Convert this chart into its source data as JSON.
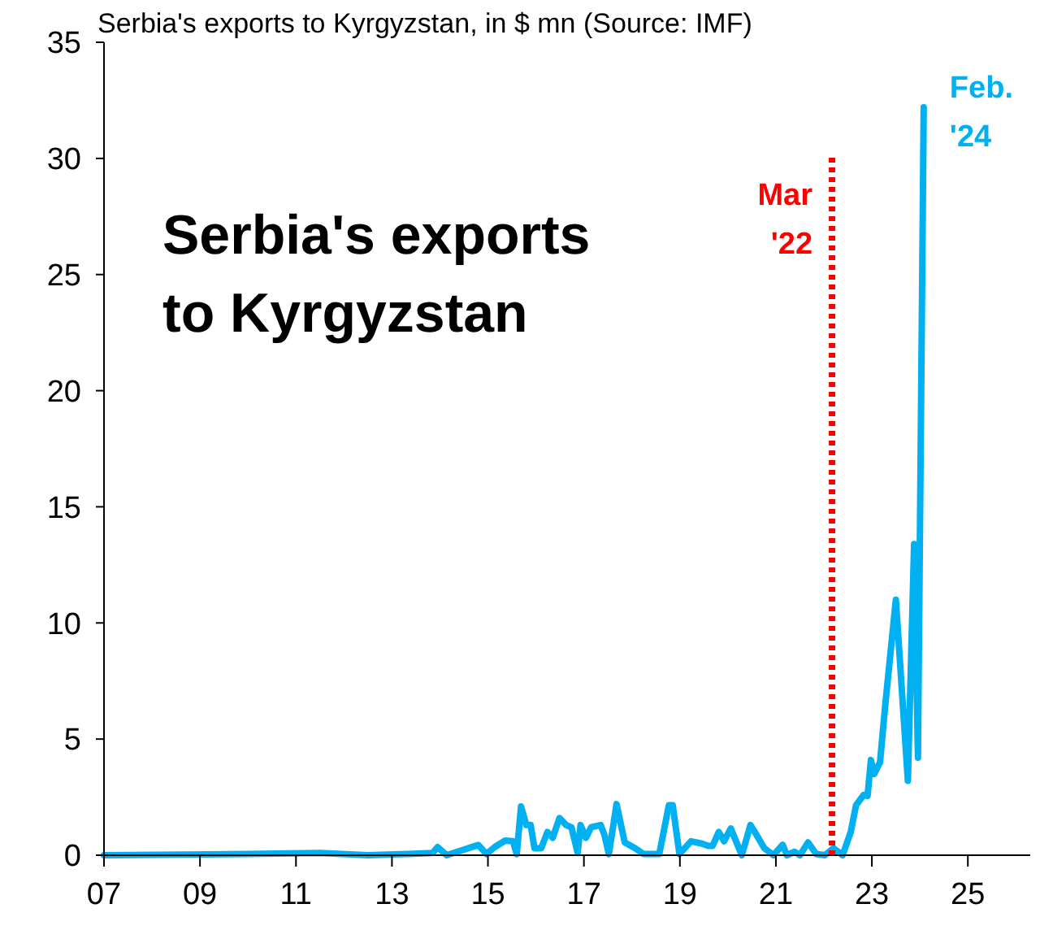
{
  "chart_data": {
    "type": "line",
    "title": "Serbia's exports to Kyrgyzstan, in $ mn (Source: IMF)",
    "xlim": [
      2007,
      2026.3
    ],
    "ylim": [
      0,
      35
    ],
    "xticks": [
      {
        "value": 2007,
        "label": "07"
      },
      {
        "value": 2009,
        "label": "09"
      },
      {
        "value": 2011,
        "label": "11"
      },
      {
        "value": 2013,
        "label": "13"
      },
      {
        "value": 2015,
        "label": "15"
      },
      {
        "value": 2017,
        "label": "17"
      },
      {
        "value": 2019,
        "label": "19"
      },
      {
        "value": 2021,
        "label": "21"
      },
      {
        "value": 2023,
        "label": "23"
      },
      {
        "value": 2025,
        "label": "25"
      }
    ],
    "yticks": [
      0,
      5,
      10,
      15,
      20,
      25,
      30,
      35
    ],
    "grid": false,
    "marker": "none",
    "line_style": "solid",
    "series": [
      {
        "color": "#00b0f0",
        "x": [
          2007,
          2010,
          2011.5,
          2012.5,
          2013.3,
          2013.85,
          2013.95,
          2014.14,
          2014.8,
          2014.97,
          2015.14,
          2015.36,
          2015.52,
          2015.6,
          2015.69,
          2015.8,
          2015.89,
          2015.97,
          2016.11,
          2016.24,
          2016.35,
          2016.49,
          2016.63,
          2016.74,
          2016.87,
          2016.93,
          2017.04,
          2017.15,
          2017.35,
          2017.43,
          2017.52,
          2017.68,
          2017.85,
          2018.07,
          2018.24,
          2018.57,
          2018.77,
          2018.85,
          2018.99,
          2019.23,
          2019.46,
          2019.59,
          2019.68,
          2019.81,
          2019.92,
          2020.06,
          2020.17,
          2020.29,
          2020.47,
          2020.56,
          2020.76,
          2020.95,
          2021.14,
          2021.23,
          2021.39,
          2021.5,
          2021.67,
          2021.84,
          2022.02,
          2022.2,
          2022.39,
          2022.56,
          2022.67,
          2022.83,
          2022.91,
          2022.98,
          2023.05,
          2023.17,
          2023.28,
          2023.5,
          2023.75,
          2023.88,
          2023.96,
          2024.08
        ],
        "values": [
          0,
          0.05,
          0.1,
          0,
          0.05,
          0.1,
          0.35,
          0,
          0.44,
          0.05,
          0.35,
          0.63,
          0.6,
          0.05,
          2.1,
          1.3,
          1.3,
          0.3,
          0.3,
          1,
          0.75,
          1.6,
          1.3,
          1.2,
          0.1,
          1.3,
          0.75,
          1.2,
          1.3,
          0.85,
          0.05,
          2.2,
          0.55,
          0.3,
          0.05,
          0.05,
          2.15,
          2.15,
          0.05,
          0.6,
          0.5,
          0.4,
          0.4,
          1,
          0.6,
          1.15,
          0.6,
          0,
          1.3,
          1,
          0.3,
          0,
          0.45,
          0,
          0.15,
          0,
          0.55,
          0.05,
          0,
          0.3,
          0,
          1,
          2.15,
          2.6,
          2.55,
          4.1,
          3.5,
          4,
          6.5,
          11,
          3.2,
          13.4,
          4.2,
          32.2
        ]
      }
    ],
    "ref_lines": [
      {
        "axis": "x",
        "value": 2022.17,
        "label": "Mar '22",
        "color": "#ff0000",
        "line_style": "dotted"
      }
    ],
    "annotations": [
      "Serbia's exports to Kyrgyzstan",
      {
        "text": "Feb. '24",
        "x": 2024.08,
        "y": 32.2
      }
    ]
  }
}
